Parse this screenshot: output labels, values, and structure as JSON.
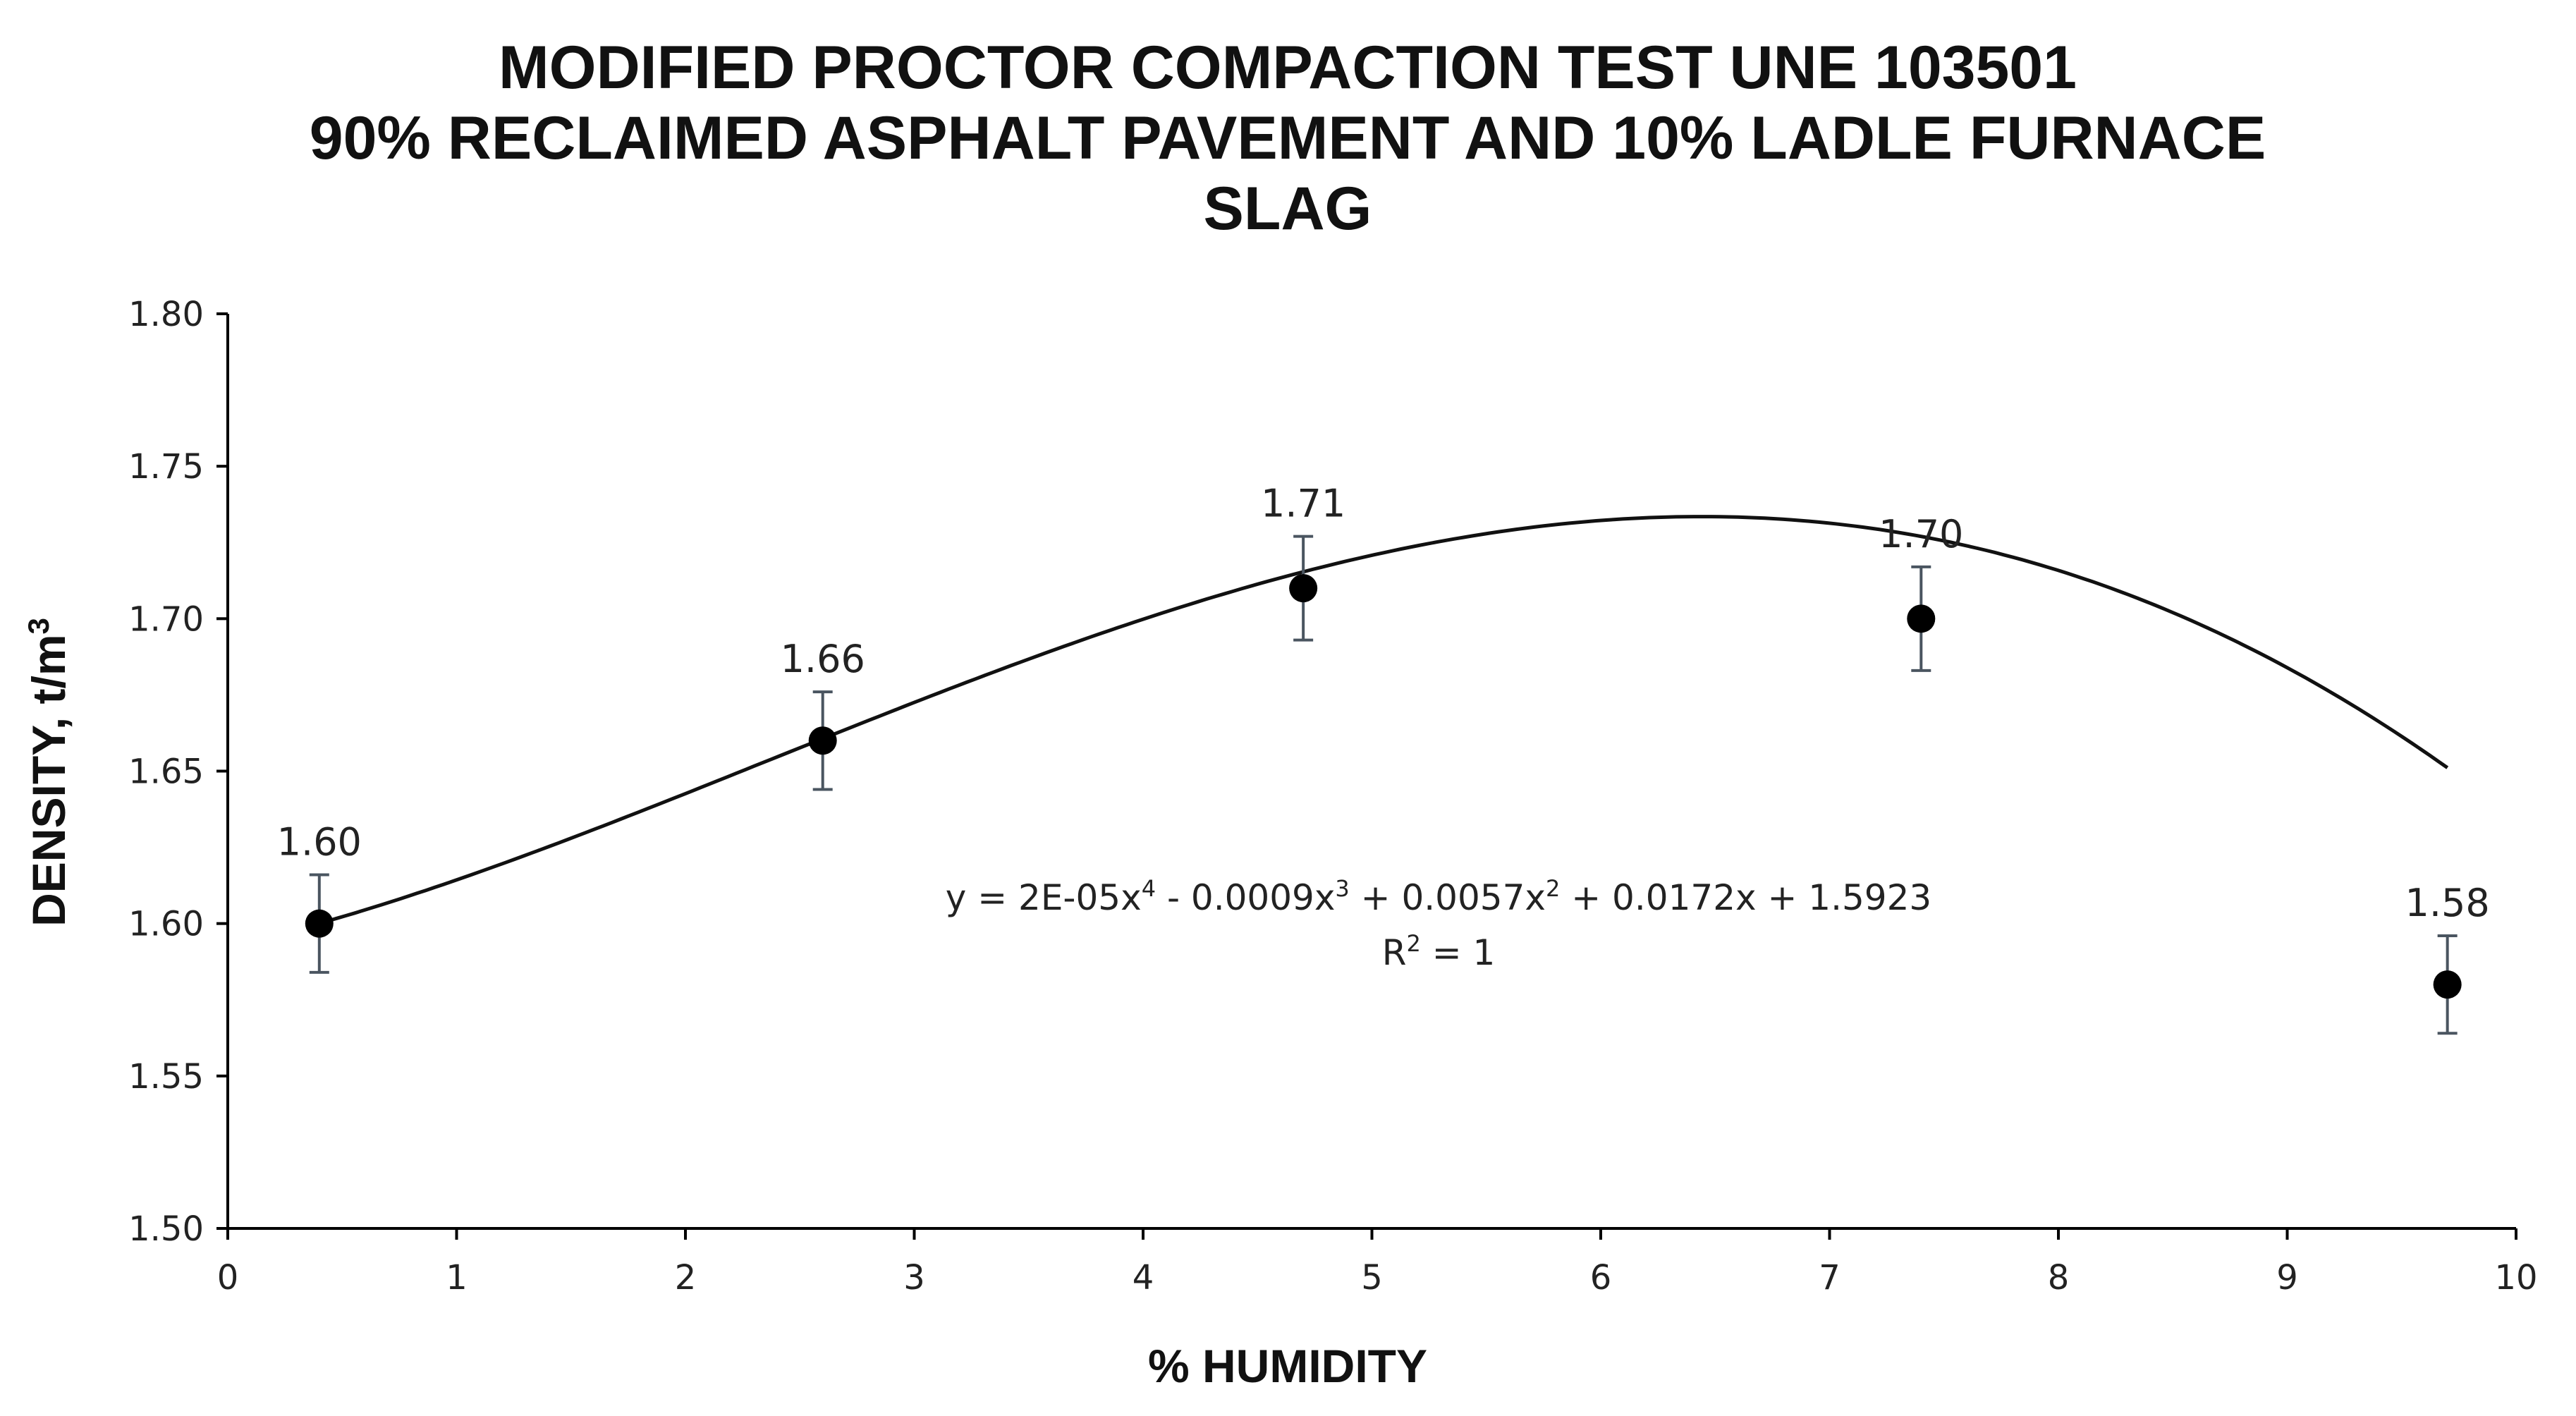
{
  "chart_data": {
    "type": "scatter",
    "title_lines": [
      "MODIFIED PROCTOR COMPACTION TEST UNE 103501",
      "90% RECLAIMED ASPHALT PAVEMENT AND 10% LADLE FURNACE",
      "SLAG"
    ],
    "xlabel": "% HUMIDITY",
    "ylabel_main": "DENSITY, t/m",
    "ylabel_sup": "3",
    "xlim": [
      0,
      10
    ],
    "ylim": [
      1.5,
      1.8
    ],
    "x_ticks": [
      "0",
      "1",
      "2",
      "3",
      "4",
      "5",
      "6",
      "7",
      "8",
      "9",
      "10"
    ],
    "y_ticks": [
      "1.50",
      "1.55",
      "1.60",
      "1.65",
      "1.70",
      "1.75",
      "1.80"
    ],
    "grid": false,
    "legend": "none",
    "series": [
      {
        "x": [
          0.4,
          2.6,
          4.7,
          7.4,
          9.7
        ],
        "y": [
          1.6,
          1.66,
          1.71,
          1.7,
          1.58
        ],
        "labels": [
          "1.60",
          "1.66",
          "1.71",
          "1.70",
          "1.58"
        ],
        "error": [
          0.016,
          0.016,
          0.017,
          0.017,
          0.016
        ]
      }
    ],
    "trendline": {
      "type": "polynomial",
      "order": 4,
      "coefficients": [
        2e-05,
        -0.0009,
        0.0057,
        0.0172,
        1.5923
      ],
      "equation_parts": [
        "y = 2E-05x",
        "4",
        " - 0.0009x",
        "3",
        " + 0.0057x",
        "2",
        " + 0.0172x + 1.5923"
      ],
      "r2_parts": [
        "R",
        "2",
        " = 1"
      ]
    },
    "colors": {
      "points": "#000000",
      "trendline": "#111111",
      "error_bars": "#4a5560",
      "axes": "#000000",
      "text": "#222222"
    }
  }
}
